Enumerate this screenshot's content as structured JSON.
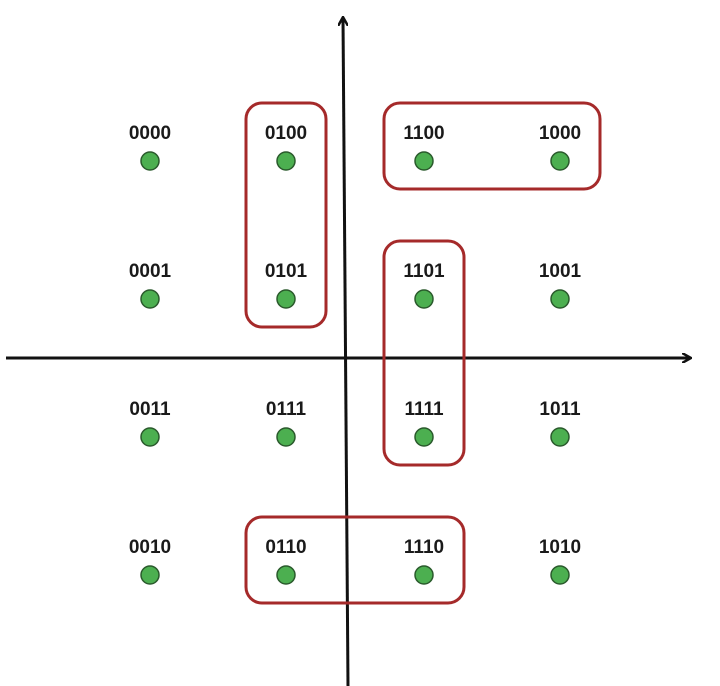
{
  "diagram": {
    "type": "constellation",
    "points": [
      {
        "code": "0000",
        "row": 0,
        "col": 0
      },
      {
        "code": "0100",
        "row": 0,
        "col": 1
      },
      {
        "code": "1100",
        "row": 0,
        "col": 2
      },
      {
        "code": "1000",
        "row": 0,
        "col": 3
      },
      {
        "code": "0001",
        "row": 1,
        "col": 0
      },
      {
        "code": "0101",
        "row": 1,
        "col": 1
      },
      {
        "code": "1101",
        "row": 1,
        "col": 2
      },
      {
        "code": "1001",
        "row": 1,
        "col": 3
      },
      {
        "code": "0011",
        "row": 2,
        "col": 0
      },
      {
        "code": "0111",
        "row": 2,
        "col": 1
      },
      {
        "code": "1111",
        "row": 2,
        "col": 2
      },
      {
        "code": "1011",
        "row": 2,
        "col": 3
      },
      {
        "code": "0010",
        "row": 3,
        "col": 0
      },
      {
        "code": "0110",
        "row": 3,
        "col": 1
      },
      {
        "code": "1110",
        "row": 3,
        "col": 2
      },
      {
        "code": "1010",
        "row": 3,
        "col": 3
      }
    ],
    "groups": [
      {
        "name": "group-0100-0101",
        "members": [
          "0100",
          "0101"
        ]
      },
      {
        "name": "group-1100-1000",
        "members": [
          "1100",
          "1000"
        ]
      },
      {
        "name": "group-1101-1111",
        "members": [
          "1101",
          "1111"
        ]
      },
      {
        "name": "group-0110-1110",
        "members": [
          "0110",
          "1110"
        ]
      }
    ],
    "colors": {
      "dot_fill": "#4caf50",
      "dot_stroke": "#2a5a2c",
      "group_stroke": "#a52a2a",
      "axis": "#111111",
      "label": "#1a1a1a"
    }
  }
}
